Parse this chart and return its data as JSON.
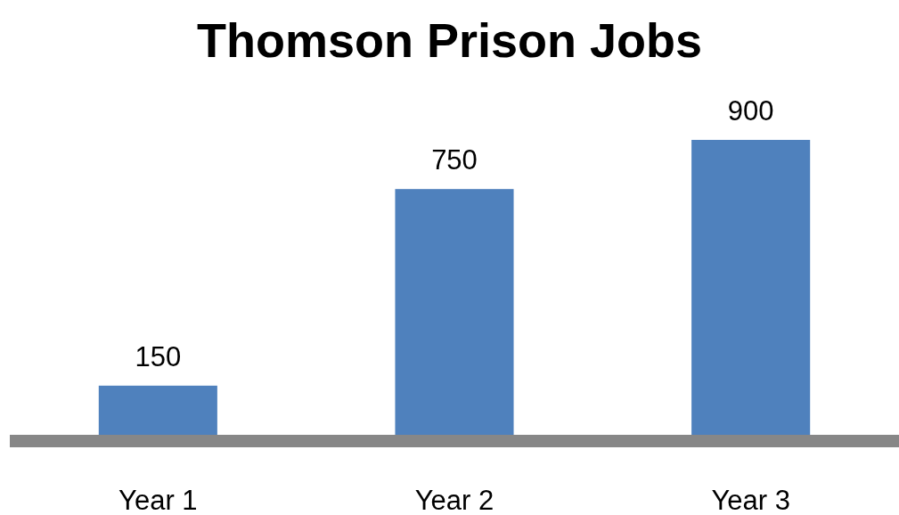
{
  "chart_data": {
    "type": "bar",
    "title": "Thomson Prison Jobs",
    "categories": [
      "Year 1",
      "Year 2",
      "Year 3"
    ],
    "values": [
      150,
      750,
      900
    ],
    "color": "#4f81bd",
    "data_labels": true
  }
}
